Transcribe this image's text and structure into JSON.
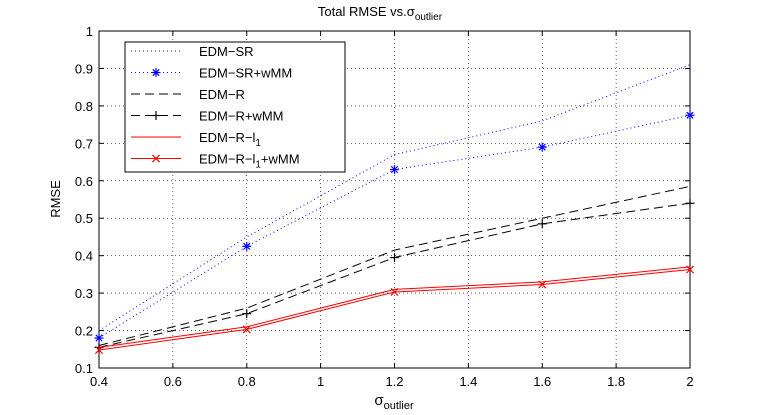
{
  "chart_data": {
    "type": "line",
    "title": "Total RMSE vs.",
    "title_symbol": "σ",
    "title_subscript": "outlier",
    "xlabel": "σ",
    "xlabel_subscript": "outlier",
    "ylabel": "RMSE",
    "xlim": [
      0.4,
      2
    ],
    "ylim": [
      0.1,
      1
    ],
    "xticks": [
      0.4,
      0.6,
      0.8,
      1,
      1.2,
      1.4,
      1.6,
      1.8,
      2
    ],
    "yticks": [
      0.1,
      0.2,
      0.3,
      0.4,
      0.5,
      0.6,
      0.7,
      0.8,
      0.9,
      1
    ],
    "grid": true,
    "legend_position": "top-left",
    "x": [
      0.4,
      0.8,
      1.2,
      1.6,
      2
    ],
    "series": [
      {
        "name": "EDM−SR",
        "sub": "",
        "suffix": "",
        "values": [
          0.2,
          0.45,
          0.67,
          0.76,
          0.91
        ],
        "color": "#0000ff",
        "dash": "1,3",
        "marker": "none"
      },
      {
        "name": "EDM−SR+wMM",
        "sub": "",
        "suffix": "",
        "values": [
          0.18,
          0.425,
          0.63,
          0.69,
          0.775
        ],
        "color": "#0000ff",
        "dash": "1,3",
        "marker": "asterisk"
      },
      {
        "name": "EDM−R",
        "sub": "",
        "suffix": "",
        "values": [
          0.16,
          0.26,
          0.415,
          0.5,
          0.585
        ],
        "color": "#000000",
        "dash": "9,5",
        "marker": "none"
      },
      {
        "name": "EDM−R+wMM",
        "sub": "",
        "suffix": "",
        "values": [
          0.155,
          0.245,
          0.395,
          0.485,
          0.54
        ],
        "color": "#000000",
        "dash": "9,5",
        "marker": "plus"
      },
      {
        "name": "EDM−R−l",
        "sub": "1",
        "suffix": "",
        "values": [
          0.155,
          0.21,
          0.31,
          0.33,
          0.37
        ],
        "color": "#ff0000",
        "dash": "",
        "marker": "none"
      },
      {
        "name": "EDM−R−l",
        "sub": "1",
        "suffix": "+wMM",
        "values": [
          0.148,
          0.203,
          0.303,
          0.323,
          0.363
        ],
        "color": "#ff0000",
        "dash": "",
        "marker": "x"
      }
    ]
  }
}
